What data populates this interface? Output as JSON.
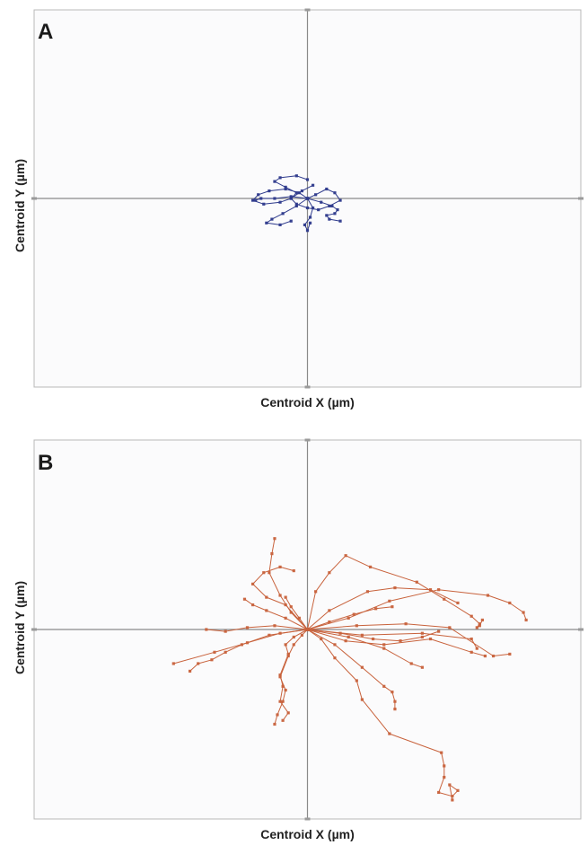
{
  "chart_data": [
    {
      "type": "line",
      "panel_label": "A",
      "xlabel": "Centroid X (µm)",
      "ylabel": "Centroid Y (µm)",
      "xlim": [
        -100,
        100
      ],
      "ylim": [
        -100,
        100
      ],
      "grid": false,
      "axes": "crosshair-at-origin",
      "color": "#2e3a8c",
      "series": [
        {
          "x": [
            0,
            -3,
            -8,
            -14,
            -18,
            -20,
            -16,
            -10,
            -6,
            -4,
            -8,
            -12,
            -10,
            -4,
            0
          ],
          "y": [
            0,
            3,
            5,
            4,
            2,
            -1,
            -3,
            -2,
            0,
            3,
            6,
            9,
            11,
            12,
            10
          ]
        },
        {
          "x": [
            0,
            3,
            7,
            10,
            12,
            8,
            4,
            0,
            -4,
            -6,
            -2,
            2
          ],
          "y": [
            0,
            2,
            5,
            3,
            -1,
            -4,
            -6,
            -5,
            -3,
            0,
            4,
            7
          ]
        },
        {
          "x": [
            0,
            5,
            9,
            11,
            10,
            7,
            8,
            12
          ],
          "y": [
            0,
            -2,
            -4,
            -6,
            -8,
            -9,
            -11,
            -12
          ]
        },
        {
          "x": [
            0,
            -4,
            -9,
            -13,
            -15,
            -10,
            -6
          ],
          "y": [
            0,
            -4,
            -8,
            -11,
            -13,
            -14,
            -12
          ]
        },
        {
          "x": [
            0,
            2,
            1,
            -1,
            0,
            1
          ],
          "y": [
            0,
            -5,
            -10,
            -14,
            -17,
            -13
          ]
        },
        {
          "x": [
            0,
            -6,
            -12,
            -17,
            -19
          ],
          "y": [
            0,
            1,
            0,
            0,
            -1
          ]
        }
      ]
    },
    {
      "type": "line",
      "panel_label": "B",
      "xlabel": "Centroid X (µm)",
      "ylabel": "Centroid Y (µm)",
      "xlim": [
        -100,
        100
      ],
      "ylim": [
        -100,
        100
      ],
      "grid": false,
      "axes": "crosshair-at-origin",
      "color": "#c8623c",
      "series": [
        {
          "x": [
            0,
            8,
            22,
            32,
            45,
            55
          ],
          "y": [
            0,
            10,
            20,
            22,
            21,
            14
          ]
        },
        {
          "x": [
            0,
            15,
            30,
            48,
            66,
            74,
            79,
            80
          ],
          "y": [
            0,
            6,
            15,
            21,
            18,
            14,
            9,
            5
          ]
        },
        {
          "x": [
            0,
            20,
            42,
            60,
            62
          ],
          "y": [
            0,
            -3,
            -2,
            -5,
            -10
          ]
        },
        {
          "x": [
            0,
            18,
            36,
            52,
            68,
            74
          ],
          "y": [
            0,
            2,
            3,
            1,
            -14,
            -13
          ]
        },
        {
          "x": [
            0,
            14,
            28,
            45,
            60,
            65
          ],
          "y": [
            0,
            -6,
            -8,
            -5,
            -12,
            -14
          ]
        },
        {
          "x": [
            0,
            12,
            24,
            34,
            42,
            48
          ],
          "y": [
            0,
            -2,
            -5,
            -6,
            -4,
            -1
          ]
        },
        {
          "x": [
            0,
            15,
            28,
            38,
            42
          ],
          "y": [
            0,
            -4,
            -10,
            -18,
            -20
          ]
        },
        {
          "x": [
            0,
            8,
            17,
            25,
            31
          ],
          "y": [
            0,
            4,
            8,
            11,
            12
          ]
        },
        {
          "x": [
            0,
            10,
            20,
            28,
            31,
            32,
            32
          ],
          "y": [
            0,
            -8,
            -20,
            -30,
            -33,
            -38,
            -42
          ]
        },
        {
          "x": [
            0,
            3,
            8,
            14,
            23,
            40,
            50,
            60,
            63,
            62,
            63,
            64
          ],
          "y": [
            0,
            20,
            30,
            39,
            33,
            25,
            16,
            7,
            3,
            1,
            2,
            5
          ]
        },
        {
          "x": [
            0,
            -6,
            -10,
            -14,
            -13,
            -12
          ],
          "y": [
            0,
            9,
            18,
            30,
            40,
            48
          ]
        },
        {
          "x": [
            0,
            -8,
            -15,
            -20,
            -16,
            -10,
            -5
          ],
          "y": [
            0,
            13,
            17,
            24,
            30,
            33,
            31
          ]
        },
        {
          "x": [
            0,
            -3,
            -6,
            -8
          ],
          "y": [
            0,
            6,
            12,
            17
          ]
        },
        {
          "x": [
            0,
            -8,
            -15,
            -20,
            -23
          ],
          "y": [
            0,
            6,
            10,
            13,
            16
          ]
        },
        {
          "x": [
            0,
            -12,
            -22,
            -30,
            -37
          ],
          "y": [
            0,
            2,
            1,
            -1,
            0
          ]
        },
        {
          "x": [
            0,
            -2,
            -5,
            -7,
            -10,
            -8,
            -9,
            -11,
            -12
          ],
          "y": [
            0,
            -3,
            -8,
            -14,
            -25,
            -32,
            -38,
            -45,
            -50
          ]
        },
        {
          "x": [
            0,
            -14,
            -24,
            -30,
            -35,
            -40,
            -43
          ],
          "y": [
            0,
            -3,
            -8,
            -12,
            -16,
            -18,
            -22
          ]
        },
        {
          "x": [
            0,
            -10,
            -22,
            -34,
            -49
          ],
          "y": [
            0,
            -2,
            -7,
            -12,
            -18
          ]
        },
        {
          "x": [
            0,
            -5,
            -8,
            -7,
            -10,
            -9,
            -10,
            -7,
            -9
          ],
          "y": [
            0,
            -4,
            -8,
            -13,
            -24,
            -30,
            -38,
            -44,
            -48
          ]
        },
        {
          "x": [
            0,
            5,
            10,
            18,
            20,
            30,
            49,
            50,
            50,
            48,
            53,
            55,
            52,
            53
          ],
          "y": [
            0,
            -5,
            -15,
            -27,
            -37,
            -55,
            -65,
            -72,
            -78,
            -86,
            -88,
            -85,
            -82,
            -90
          ]
        }
      ]
    }
  ]
}
